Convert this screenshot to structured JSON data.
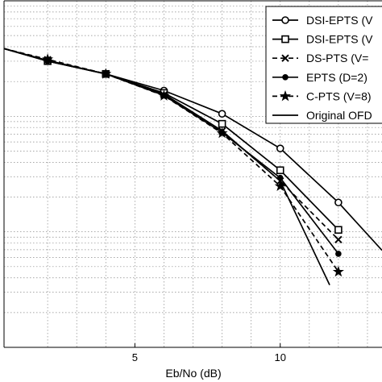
{
  "chart_data": {
    "type": "line",
    "xlabel": "Eb/No (dB)",
    "ylabel": "",
    "title": "",
    "xlim": [
      0.5,
      13.5
    ],
    "x_ticks": [
      5,
      10
    ],
    "x_tick_labels": [
      "5",
      "10"
    ],
    "ylim": [
      0,
      1
    ],
    "y_scale": "log (tick labels cropped)",
    "grid": "dotted, major and minor",
    "legend_position": "top-right",
    "series": [
      {
        "name": "DSI-EPTS (V",
        "marker": "circle",
        "line": "solid",
        "x": [
          0.5,
          2,
          4,
          6,
          8,
          10,
          12,
          13.5
        ],
        "y": [
          0.862,
          0.828,
          0.789,
          0.741,
          0.674,
          0.574,
          0.418,
          0.28
        ]
      },
      {
        "name": "DSI-EPTS (V",
        "marker": "square",
        "line": "solid",
        "x": [
          0.5,
          2,
          4,
          6,
          8,
          10,
          12
        ],
        "y": [
          0.862,
          0.826,
          0.789,
          0.734,
          0.645,
          0.511,
          0.339
        ]
      },
      {
        "name": "DS-PTS (V=",
        "marker": "x",
        "line": "dashed",
        "x": [
          0.5,
          2,
          4,
          6,
          8,
          10,
          12
        ],
        "y": [
          0.862,
          0.83,
          0.789,
          0.728,
          0.624,
          0.48,
          0.311
        ]
      },
      {
        "name": "EPTS (D=2)",
        "marker": "dot",
        "line": "solid",
        "x": [
          0.5,
          2,
          4,
          6,
          8,
          10,
          12
        ],
        "y": [
          0.862,
          0.826,
          0.789,
          0.727,
          0.62,
          0.489,
          0.27
        ]
      },
      {
        "name": "C-PTS (V=8)",
        "marker": "star",
        "line": "dashed",
        "x": [
          0.5,
          2,
          4,
          6,
          8,
          10,
          12
        ],
        "y": [
          0.862,
          0.831,
          0.789,
          0.726,
          0.618,
          0.465,
          0.218
        ]
      },
      {
        "name": "Original OFD",
        "marker": "none",
        "line": "solid",
        "x": [
          0.5,
          2,
          4,
          6,
          8,
          10,
          11.7
        ],
        "y": [
          0.862,
          0.826,
          0.789,
          0.731,
          0.625,
          0.48,
          0.18
        ]
      }
    ]
  }
}
